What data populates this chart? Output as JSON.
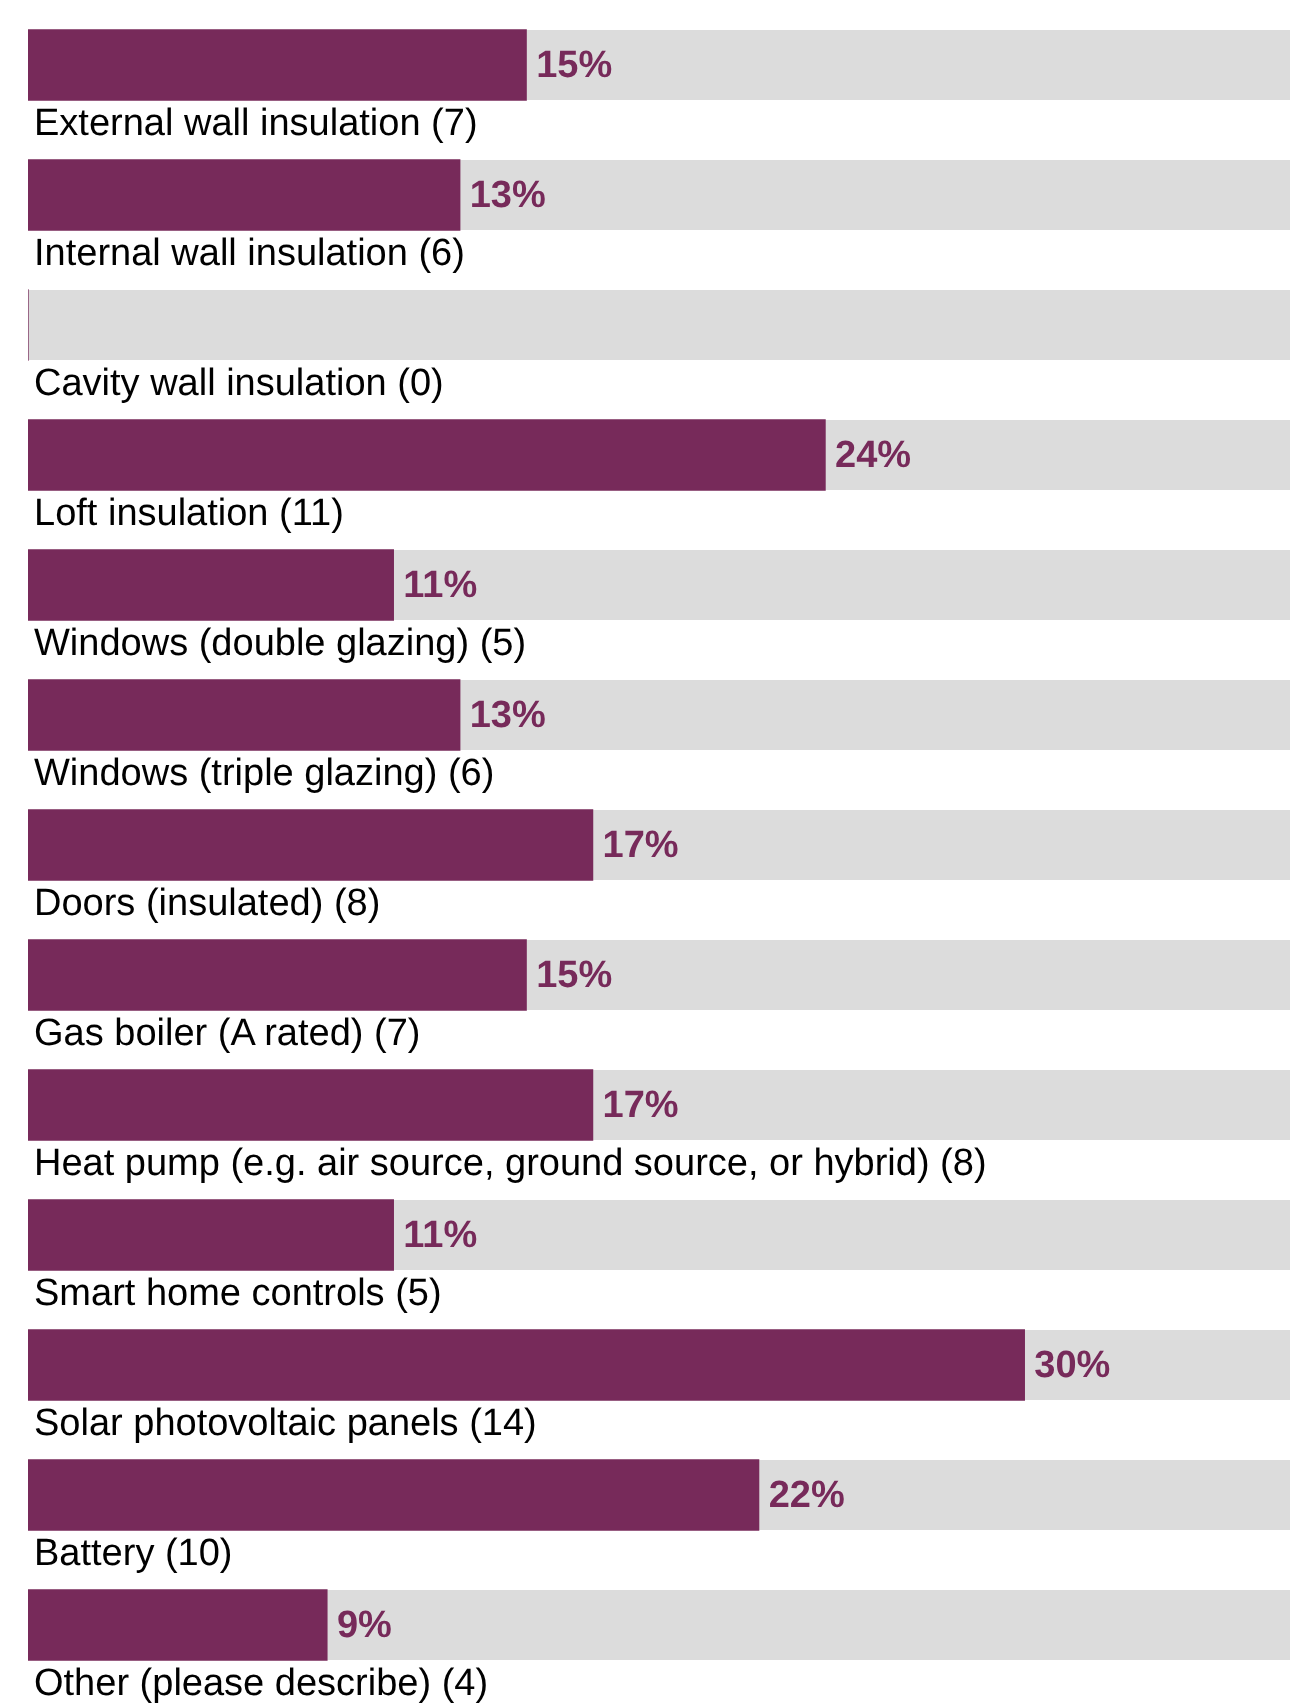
{
  "chart_data": {
    "type": "bar",
    "orientation": "horizontal",
    "categories": [
      "External wall insulation (7)",
      "Internal wall insulation (6)",
      "Cavity wall insulation (0)",
      "Loft insulation (11)",
      "Windows (double glazing) (5)",
      "Windows (triple glazing) (6)",
      "Doors (insulated) (8)",
      "Gas boiler (A rated) (7)",
      "Heat pump (e.g. air source, ground source, or hybrid) (8)",
      "Smart home controls (5)",
      "Solar photovoltaic panels (14)",
      "Battery (10)",
      "Other (please describe) (4)"
    ],
    "values": [
      15,
      13,
      0,
      24,
      11,
      13,
      17,
      15,
      17,
      11,
      30,
      22,
      9
    ],
    "value_labels": [
      "15%",
      "13%",
      null,
      "24%",
      "11%",
      "13%",
      "17%",
      "15%",
      "17%",
      "11%",
      "30%",
      "22%",
      "9%"
    ],
    "color": "#772a5a",
    "xlim": [
      0,
      38
    ],
    "tick_labels": false,
    "legend": false
  }
}
